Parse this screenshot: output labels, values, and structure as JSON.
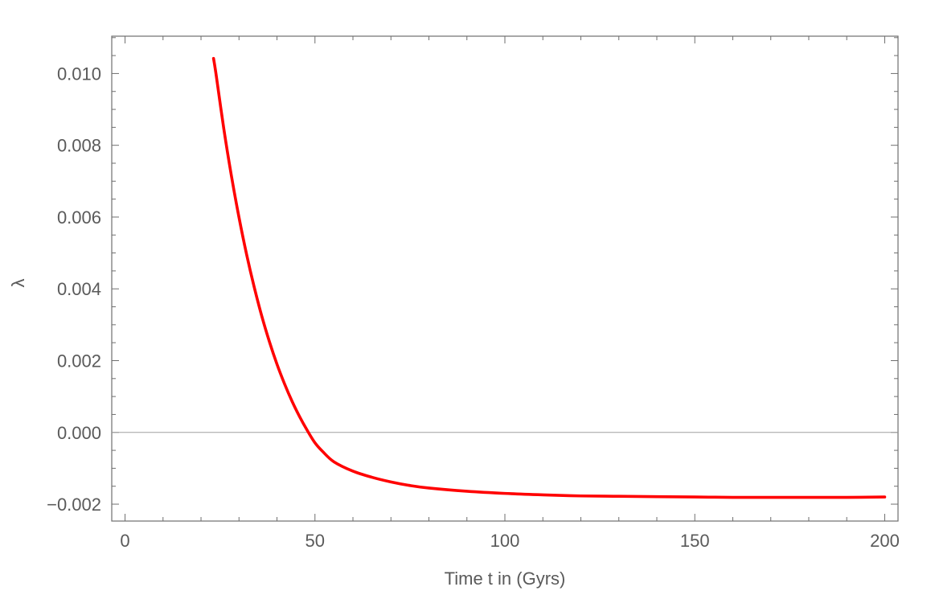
{
  "chart_data": {
    "type": "line",
    "title": "",
    "xlabel": "Time t in (Gyrs)",
    "ylabel": "λ",
    "xlim": [
      -3.5,
      203.5
    ],
    "ylim": [
      -0.00247,
      0.01104
    ],
    "x_ticks": [
      0,
      50,
      100,
      150,
      200
    ],
    "x_tick_labels": [
      "0",
      "50",
      "100",
      "150",
      "200"
    ],
    "x_minor_step": 10,
    "y_ticks": [
      -0.002,
      0.0,
      0.002,
      0.004,
      0.006,
      0.008,
      0.01
    ],
    "y_tick_labels": [
      "−0.002",
      "0.000",
      "0.002",
      "0.004",
      "0.006",
      "0.008",
      "0.010"
    ],
    "y_minor_step": 0.0005,
    "zero_line": true,
    "grid": false,
    "series": [
      {
        "color": "#ff0000",
        "x": [
          23.3,
          24,
          26,
          28,
          30,
          32,
          34,
          36,
          38,
          40,
          42,
          44,
          46,
          48,
          50,
          52,
          55,
          60,
          65,
          70,
          75,
          80,
          90,
          100,
          110,
          120,
          130,
          140,
          150,
          160,
          170,
          180,
          190,
          200
        ],
        "y": [
          0.01042,
          0.00995,
          0.00846,
          0.00715,
          0.00599,
          0.00496,
          0.00405,
          0.00324,
          0.00253,
          0.0019,
          0.00135,
          0.00086,
          0.00043,
          5e-05,
          -0.00029,
          -0.00053,
          -0.00082,
          -0.00108,
          -0.00125,
          -0.00138,
          -0.00148,
          -0.00155,
          -0.00164,
          -0.0017,
          -0.00174,
          -0.00177,
          -0.00178,
          -0.00179,
          -0.0018,
          -0.00181,
          -0.00181,
          -0.00181,
          -0.00181,
          -0.0018
        ]
      }
    ]
  }
}
